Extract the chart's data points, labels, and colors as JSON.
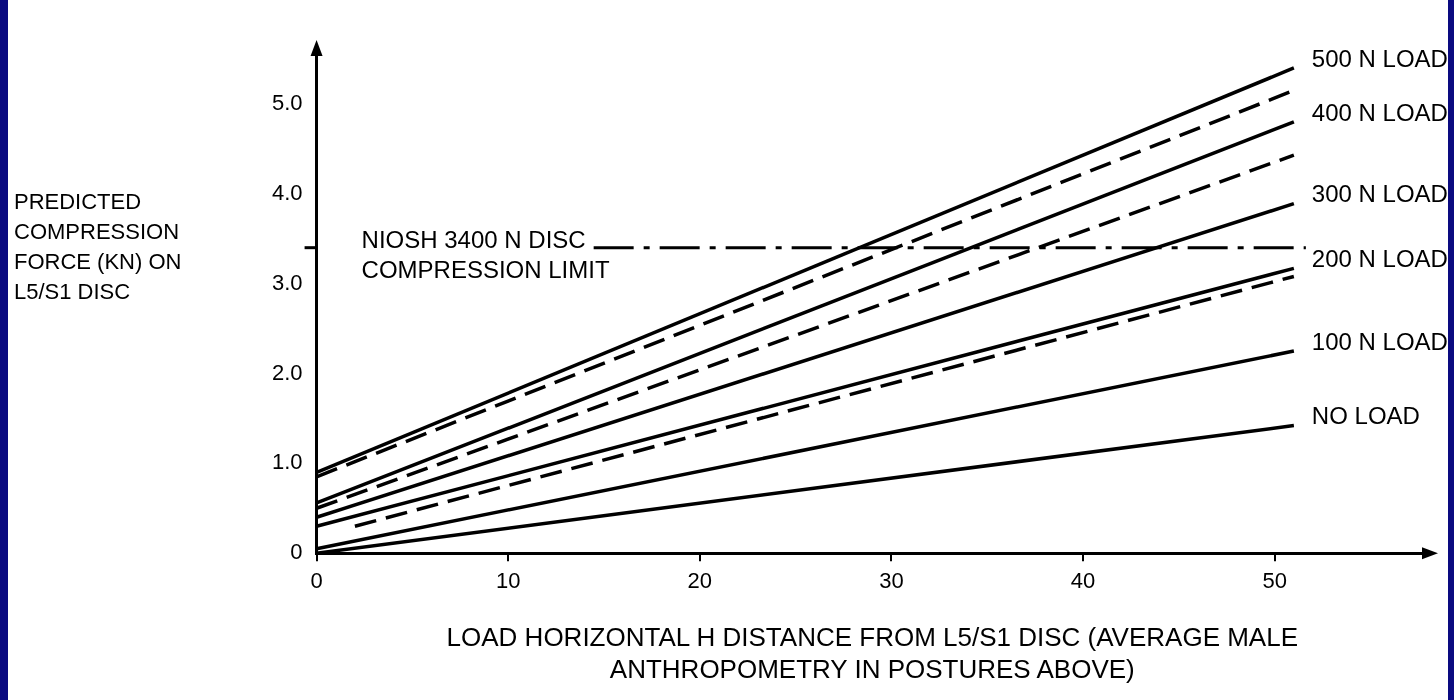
{
  "chart_data": {
    "type": "line",
    "xlabel": "LOAD HORIZONTAL H DISTANCE FROM L5/S1 DISC (AVERAGE MALE ANTHROPOMETRY IN POSTURES ABOVE)",
    "ylabel": "PREDICTED COMPRESSION FORCE (KN) ON L5/S1 DISC",
    "xlim": [
      0,
      58
    ],
    "xticks": [
      0,
      10,
      20,
      30,
      40,
      50
    ],
    "ylim": [
      0,
      5.6
    ],
    "yticks": [
      0,
      {
        "value": 1,
        "label": "1.0"
      },
      {
        "value": 2,
        "label": "2.0"
      },
      {
        "value": 3,
        "label": "3.0"
      },
      {
        "value": 4,
        "label": "4.0"
      },
      {
        "value": 5,
        "label": "5.0"
      }
    ],
    "grid": false,
    "legend": false,
    "marker": "none",
    "line_style": "solid",
    "ref_lines": [
      {
        "axis": "y",
        "value": 3.4,
        "label": "NIOSH 3400 N DISC COMPRESSION LIMIT",
        "line_style": "dashed",
        "color": "#000000"
      }
    ],
    "series": [
      {
        "name": "500 N LOAD",
        "color": "#000000",
        "x": [
          0,
          51
        ],
        "values": [
          0.9,
          5.4
        ]
      },
      {
        "name": "400 N LOAD",
        "color": "#000000",
        "x": [
          0,
          51
        ],
        "values": [
          0.56,
          4.8
        ]
      },
      {
        "name": "300 N LOAD",
        "color": "#000000",
        "x": [
          0,
          51
        ],
        "values": [
          0.4,
          3.89
        ]
      },
      {
        "name": "200 N LOAD",
        "color": "#000000",
        "x": [
          0,
          51
        ],
        "values": [
          0.3,
          3.17
        ]
      },
      {
        "name": "100 N LOAD",
        "color": "#000000",
        "x": [
          0,
          51
        ],
        "values": [
          0.05,
          2.25
        ]
      },
      {
        "name": "NO LOAD",
        "color": "#000000",
        "x": [
          0,
          51
        ],
        "values": [
          0,
          1.42
        ]
      },
      {
        "color": "#000000",
        "line_style": "dashed",
        "x": [
          0,
          51
        ],
        "values": [
          0.85,
          5.15
        ]
      },
      {
        "color": "#000000",
        "line_style": "dashed",
        "x": [
          0,
          51
        ],
        "values": [
          0.5,
          4.43
        ]
      },
      {
        "color": "#000000",
        "line_style": "dashed",
        "x": [
          2,
          51
        ],
        "values": [
          0.3,
          3.08
        ]
      }
    ]
  }
}
